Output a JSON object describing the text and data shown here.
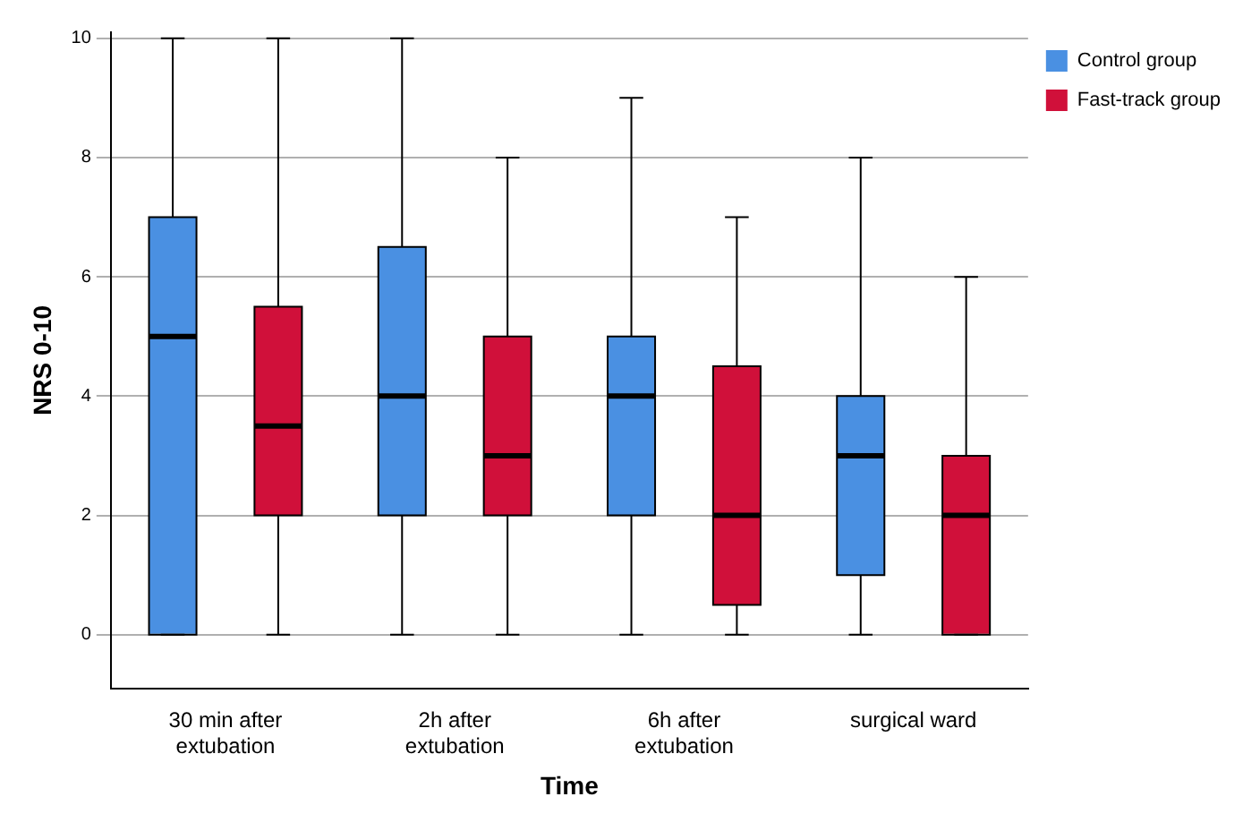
{
  "chart_data": {
    "type": "box",
    "xlabel": "Time",
    "ylabel": "NRS 0-10",
    "categories": [
      "30 min after extubation",
      "2h after extubation",
      "6h after extubation",
      "surgical ward"
    ],
    "series": [
      {
        "name": "Control group",
        "color": "#4a90e2",
        "boxes": [
          {
            "low": 0,
            "q1": 0,
            "median": 5,
            "q3": 7,
            "high": 10
          },
          {
            "low": 0,
            "q1": 2,
            "median": 4,
            "q3": 6.5,
            "high": 10
          },
          {
            "low": 0,
            "q1": 2,
            "median": 4,
            "q3": 5,
            "high": 9
          },
          {
            "low": 0,
            "q1": 1,
            "median": 3,
            "q3": 4,
            "high": 8
          }
        ]
      },
      {
        "name": "Fast-track group",
        "color": "#d0103a",
        "boxes": [
          {
            "low": 0,
            "q1": 2,
            "median": 3.5,
            "q3": 5.5,
            "high": 10
          },
          {
            "low": 0,
            "q1": 2,
            "median": 3,
            "q3": 5,
            "high": 8
          },
          {
            "low": 0,
            "q1": 0.5,
            "median": 2,
            "q3": 4.5,
            "high": 7
          },
          {
            "low": 0,
            "q1": 0,
            "median": 2,
            "q3": 3,
            "high": 6
          }
        ]
      }
    ],
    "ylim": [
      -0.9,
      10.1
    ],
    "yticks": [
      0,
      2,
      4,
      6,
      8,
      10
    ],
    "grid": "y",
    "legend": "top right"
  }
}
